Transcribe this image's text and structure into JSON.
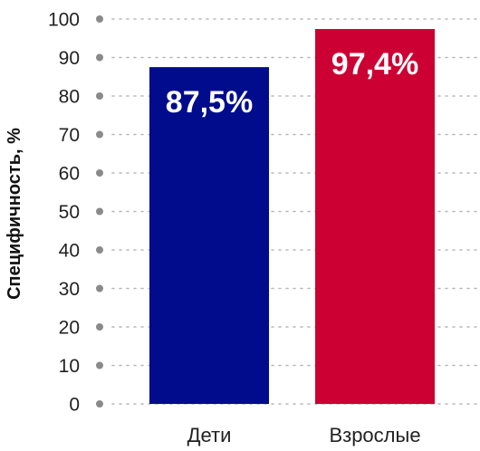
{
  "chart_data": {
    "type": "bar",
    "categories": [
      "Дети",
      "Взрослые"
    ],
    "values": [
      87.5,
      97.4
    ],
    "data_labels": [
      "87,5%",
      "97,4%"
    ],
    "colors": [
      "#000c8c",
      "#cc0033"
    ],
    "ylabel": "Специфичность, %",
    "ylim": [
      0,
      100
    ],
    "yticks": [
      0,
      10,
      20,
      30,
      40,
      50,
      60,
      70,
      80,
      90,
      100
    ],
    "ytick_labels": [
      "0",
      "10",
      "20",
      "30",
      "40",
      "50",
      "60",
      "70",
      "80",
      "90",
      "100"
    ],
    "grid": true,
    "legend": "none"
  }
}
